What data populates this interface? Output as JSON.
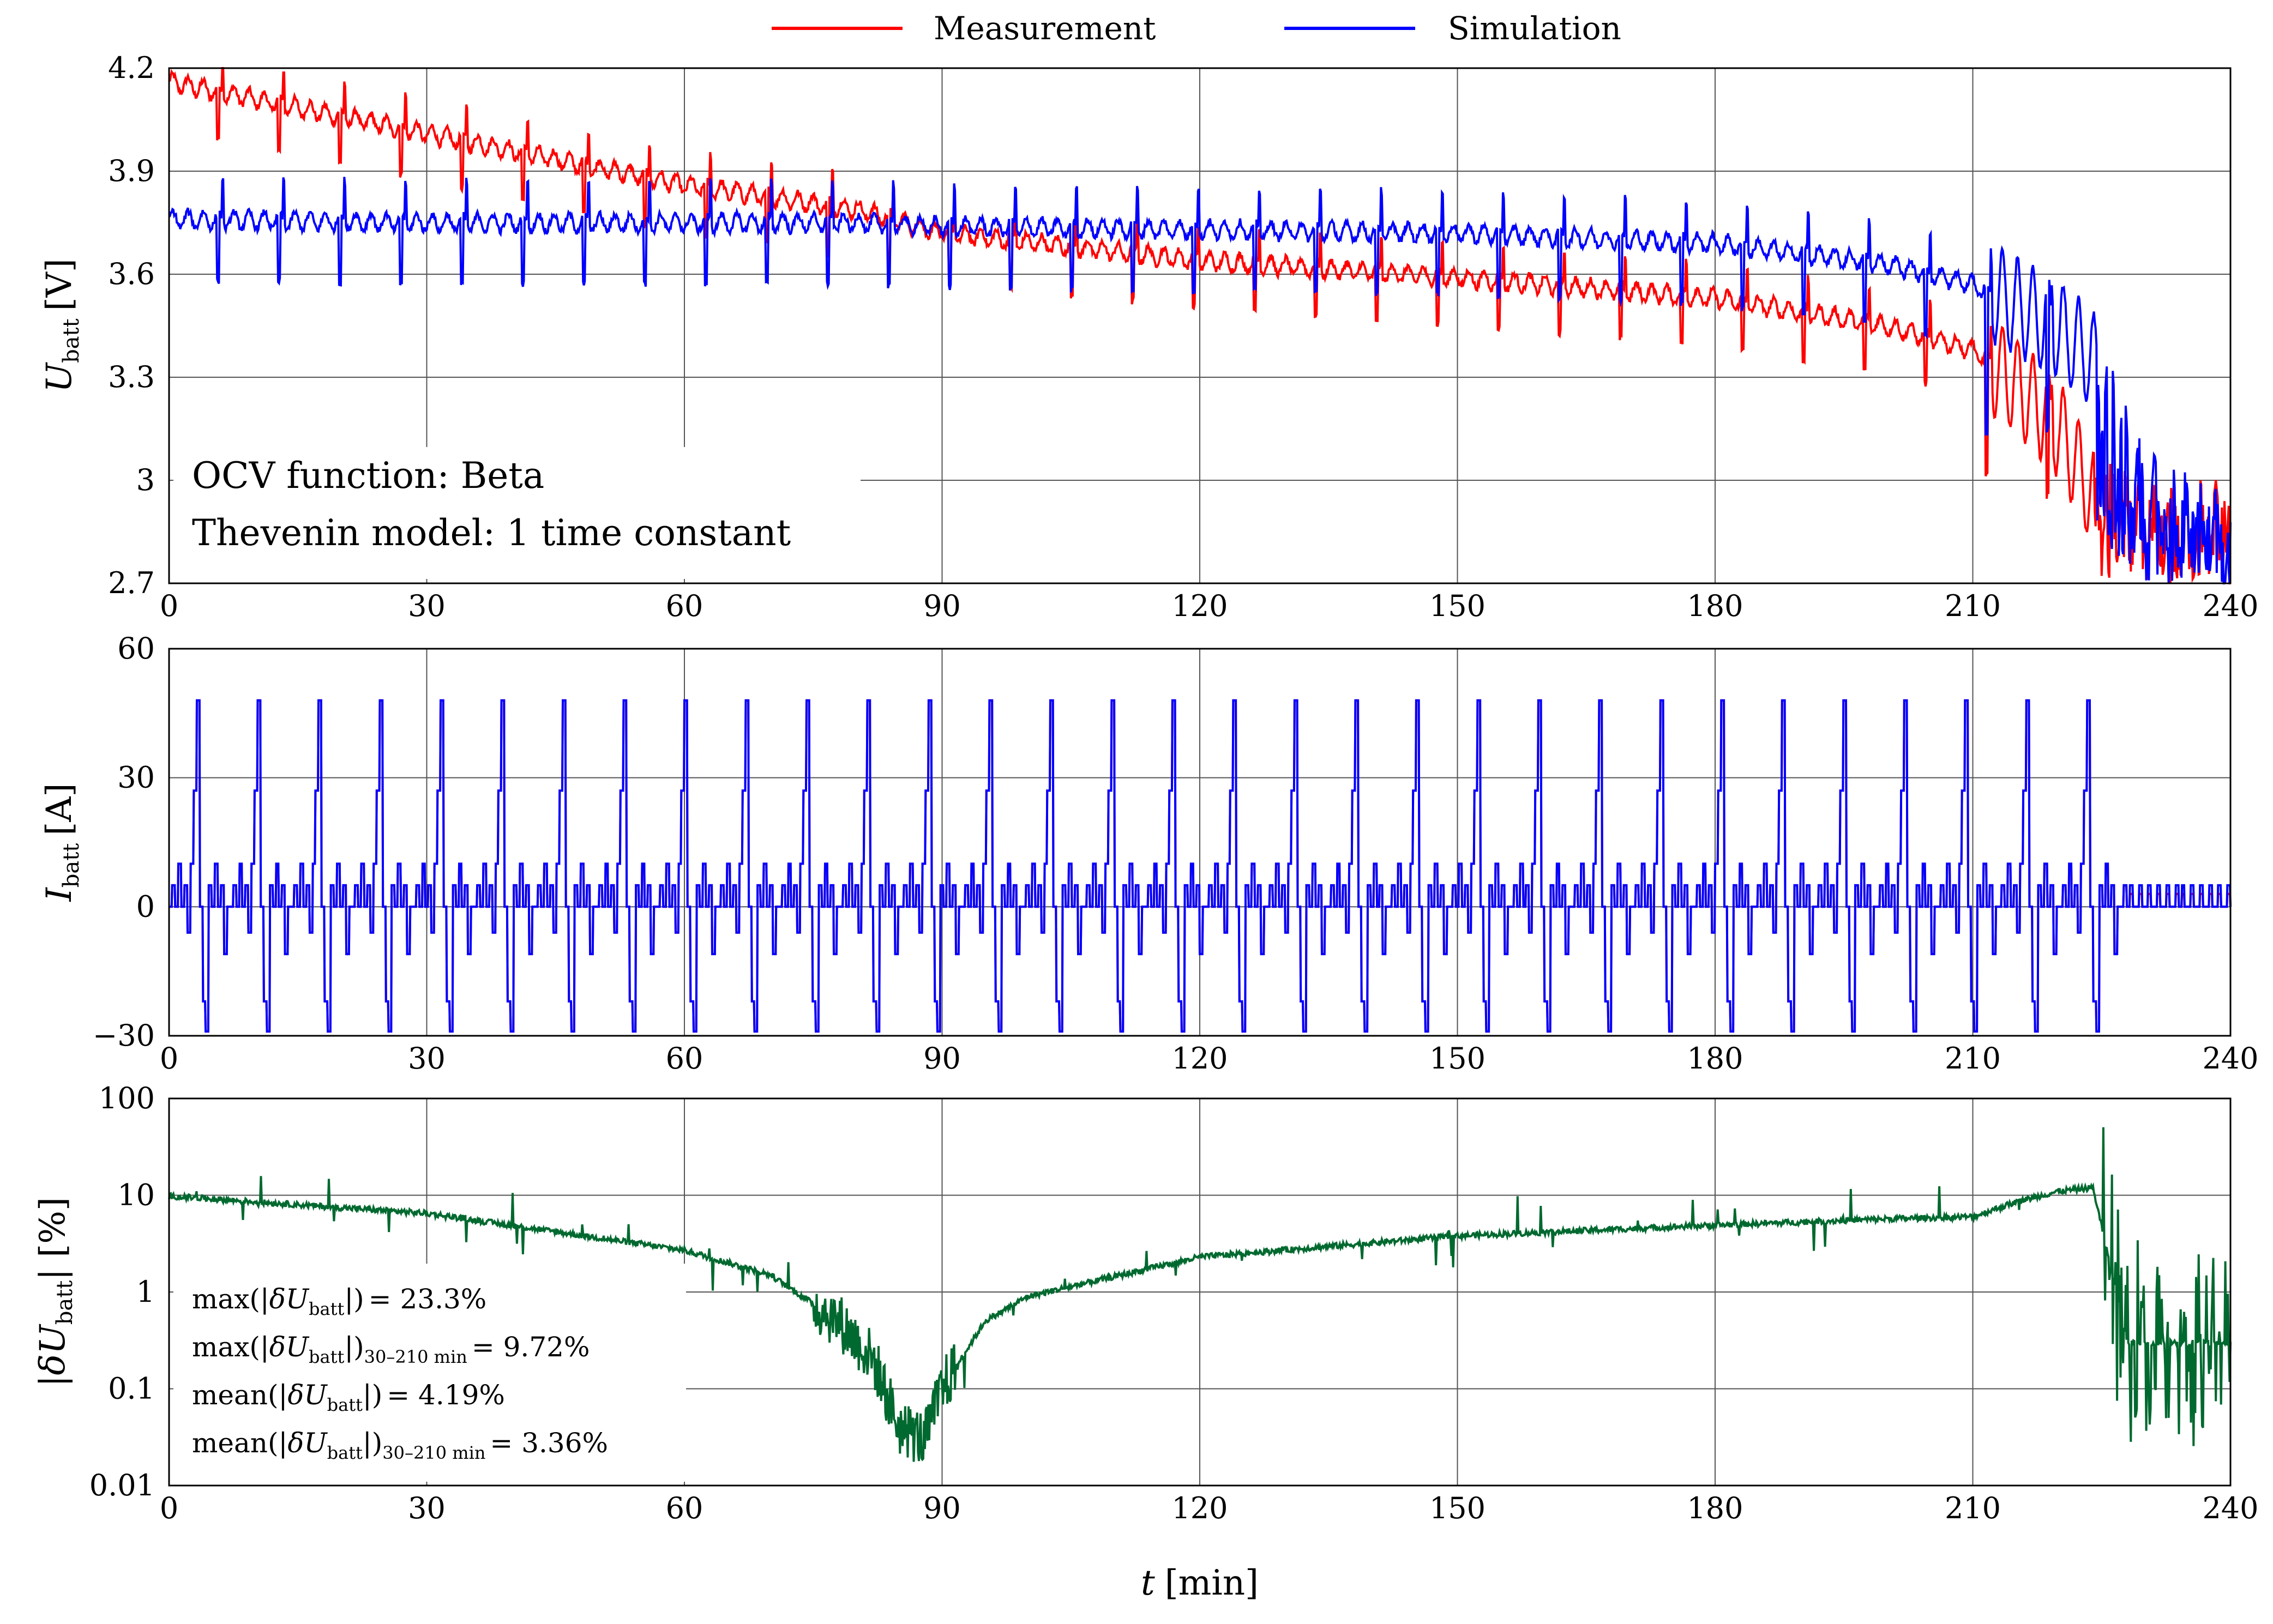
{
  "legend": {
    "items": [
      {
        "label": "Measurement",
        "color": "#ff0000"
      },
      {
        "label": "Simulation",
        "color": "#0000ff"
      }
    ]
  },
  "xaxis": {
    "label_var": "t",
    "label_unit": "[min]",
    "range": [
      0,
      240
    ],
    "ticks": [
      "0",
      "30",
      "60",
      "90",
      "120",
      "150",
      "180",
      "210",
      "240"
    ]
  },
  "chart_data": [
    {
      "type": "line",
      "panel": "voltage",
      "ylabel_var": "U",
      "ylabel_sub": "batt",
      "ylabel_unit": "[V]",
      "ylim": [
        2.7,
        4.2
      ],
      "yticks": [
        "2.7",
        "3",
        "3.3",
        "3.6",
        "3.9",
        "4.2"
      ],
      "x": [
        0,
        30,
        60,
        80,
        90,
        120,
        150,
        180,
        200,
        210,
        215,
        220,
        224,
        230,
        240
      ],
      "series": [
        {
          "name": "Measurement",
          "color": "#ff0000",
          "values": [
            4.16,
            4.01,
            3.86,
            3.79,
            3.72,
            3.64,
            3.59,
            3.53,
            3.45,
            3.38,
            3.28,
            3.15,
            2.95,
            2.86,
            2.85
          ]
        },
        {
          "name": "Simulation",
          "color": "#0000ff",
          "values": [
            3.76,
            3.75,
            3.75,
            3.75,
            3.74,
            3.73,
            3.72,
            3.69,
            3.63,
            3.57,
            3.51,
            3.44,
            3.35,
            2.95,
            2.8
          ]
        }
      ],
      "annotations": [
        "OCV function: Beta",
        "Thevenin model: 1 time constant"
      ]
    },
    {
      "type": "line",
      "panel": "current",
      "ylabel_var": "I",
      "ylabel_sub": "batt",
      "ylabel_unit": "[A]",
      "ylim": [
        -30,
        60
      ],
      "yticks": [
        "−30",
        "0",
        "30",
        "60"
      ],
      "pulse_period_min": 7.1,
      "pulse_levels": [
        0,
        5,
        10,
        27,
        48,
        -6,
        -11,
        -22,
        -29
      ],
      "series": [
        {
          "name": "Measurement",
          "color": "#ff0000"
        },
        {
          "name": "Simulation",
          "color": "#0000ff"
        }
      ]
    },
    {
      "type": "line",
      "panel": "error",
      "yscale": "log",
      "ylabel_pre": "|",
      "ylabel_var": "δU",
      "ylabel_sub": "batt",
      "ylabel_post": "| [%]",
      "ylim": [
        0.01,
        100
      ],
      "yticks": [
        "0.01",
        "0.1",
        "1",
        "10",
        "100"
      ],
      "x": [
        0,
        30,
        60,
        70,
        78,
        82,
        85,
        88,
        90,
        95,
        100,
        120,
        150,
        180,
        200,
        210,
        215,
        220,
        224,
        228,
        240
      ],
      "series": [
        {
          "name": "|δU_batt|",
          "color": "#00692f",
          "values": [
            9.8,
            6.5,
            2.7,
            1.5,
            0.5,
            0.2,
            0.04,
            0.03,
            0.1,
            0.5,
            0.9,
            2.3,
            3.8,
            4.9,
            5.7,
            6.0,
            8.5,
            11.0,
            12.0,
            0.3,
            0.3
          ]
        }
      ],
      "stats": [
        {
          "fn": "max",
          "range": "",
          "value": "= 23.3%"
        },
        {
          "fn": "max",
          "range": "30–210 min",
          "value": "= 9.72%"
        },
        {
          "fn": "mean",
          "range": "",
          "value": "= 4.19%"
        },
        {
          "fn": "mean",
          "range": "30–210 min",
          "value": "= 3.36%"
        }
      ]
    }
  ]
}
